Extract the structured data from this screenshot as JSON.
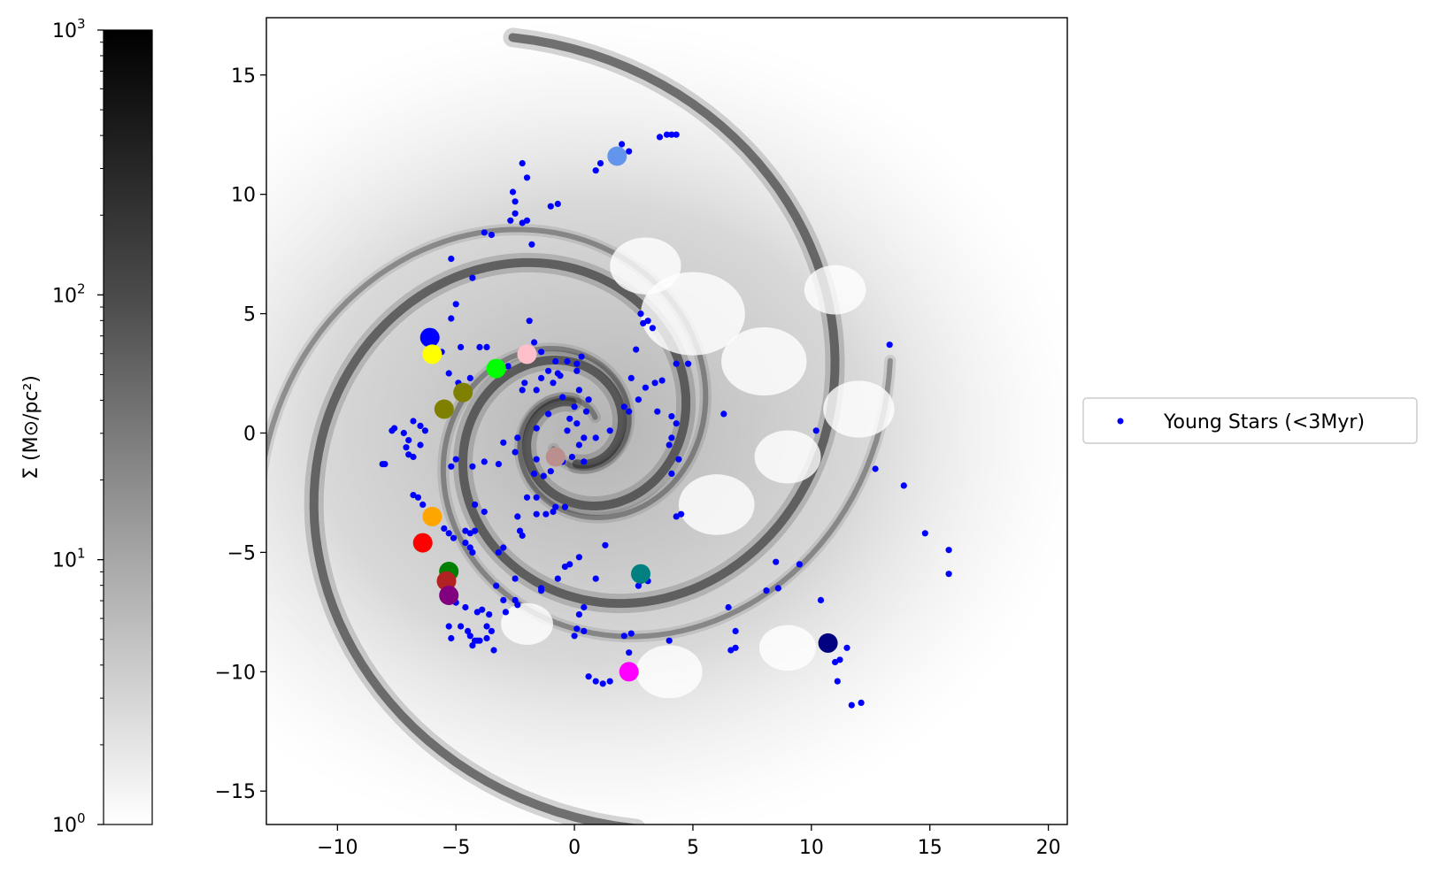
{
  "chart_data": {
    "type": "scatter",
    "background": "gas surface density map (grayscale, log scale) of a spiral galaxy",
    "xlim": [
      -13,
      20.8
    ],
    "ylim": [
      -16.4,
      17.4
    ],
    "x_ticks": [
      -10,
      -5,
      0,
      5,
      10,
      15,
      20
    ],
    "y_ticks": [
      -15,
      -10,
      -5,
      0,
      5,
      10,
      15
    ],
    "x_tick_labels": [
      "−10",
      "−5",
      "0",
      "5",
      "10",
      "15",
      "20"
    ],
    "y_tick_labels": [
      "−15",
      "−10",
      "−5",
      "0",
      "5",
      "10",
      "15"
    ],
    "grid": false,
    "legend": {
      "position": "outside-right",
      "label": "Young Stars (<3Myr)",
      "marker_color": "#0000ff"
    },
    "colorbar": {
      "label": "Σ (M⊙/pc²)",
      "scale": "log",
      "range": [
        1,
        1000
      ],
      "tick_labels": [
        {
          "base": "10",
          "exp": "0"
        },
        {
          "base": "10",
          "exp": "1"
        },
        {
          "base": "10",
          "exp": "2"
        },
        {
          "base": "10",
          "exp": "3"
        }
      ],
      "colormap": "Greys"
    },
    "series": [
      {
        "name": "Young Stars (<3Myr)",
        "color": "#0000ff",
        "marker": "small dot",
        "points": [
          [
            1.7,
            11.6
          ],
          [
            1.9,
            11.8
          ],
          [
            2.0,
            12.1
          ],
          [
            2.3,
            11.8
          ],
          [
            1.1,
            11.3
          ],
          [
            0.9,
            11.0
          ],
          [
            3.6,
            12.4
          ],
          [
            3.9,
            12.5
          ],
          [
            4.1,
            12.5
          ],
          [
            4.3,
            12.5
          ],
          [
            -2.2,
            11.3
          ],
          [
            -2.0,
            10.7
          ],
          [
            -2.6,
            10.1
          ],
          [
            -2.5,
            9.7
          ],
          [
            -1.0,
            9.5
          ],
          [
            -0.7,
            9.6
          ],
          [
            -2.5,
            9.2
          ],
          [
            -2.2,
            8.8
          ],
          [
            -2.0,
            8.9
          ],
          [
            -2.7,
            8.9
          ],
          [
            -3.8,
            8.4
          ],
          [
            -3.5,
            8.3
          ],
          [
            -1.8,
            7.9
          ],
          [
            -5.2,
            7.3
          ],
          [
            -4.3,
            6.5
          ],
          [
            -5.0,
            5.4
          ],
          [
            -5.2,
            4.8
          ],
          [
            -6.0,
            3.9
          ],
          [
            -5.6,
            3.4
          ],
          [
            -4.8,
            3.6
          ],
          [
            -4.0,
            3.6
          ],
          [
            -3.7,
            3.6
          ],
          [
            -5.3,
            2.5
          ],
          [
            -4.4,
            2.3
          ],
          [
            -4.9,
            2.1
          ],
          [
            -2.8,
            2.8
          ],
          [
            -1.9,
            4.7
          ],
          [
            -1.7,
            3.8
          ],
          [
            -1.4,
            3.4
          ],
          [
            -0.8,
            3.0
          ],
          [
            -1.1,
            2.6
          ],
          [
            -1.4,
            2.3
          ],
          [
            -0.7,
            2.5
          ],
          [
            -0.3,
            3.0
          ],
          [
            0.1,
            2.6
          ],
          [
            0.3,
            3.2
          ],
          [
            0.1,
            2.9
          ],
          [
            -0.6,
            2.4
          ],
          [
            -0.9,
            2.1
          ],
          [
            -1.6,
            1.8
          ],
          [
            -2.1,
            2.1
          ],
          [
            -2.2,
            1.8
          ],
          [
            -0.5,
            1.5
          ],
          [
            0.0,
            1.1
          ],
          [
            0.5,
            0.9
          ],
          [
            0.2,
            1.8
          ],
          [
            0.1,
            0.4
          ],
          [
            -0.3,
            0.1
          ],
          [
            -1.1,
            0.8
          ],
          [
            -1.6,
            0.2
          ],
          [
            -2.4,
            -0.2
          ],
          [
            -3.0,
            -0.4
          ],
          [
            -2.5,
            -0.8
          ],
          [
            -3.2,
            -1.3
          ],
          [
            -3.8,
            -1.2
          ],
          [
            -4.3,
            -1.4
          ],
          [
            -5.2,
            -1.4
          ],
          [
            -5.0,
            -1.1
          ],
          [
            -6.5,
            -0.5
          ],
          [
            -7.0,
            -0.3
          ],
          [
            -7.2,
            0.0
          ],
          [
            -7.7,
            0.1
          ],
          [
            -7.6,
            0.2
          ],
          [
            -6.8,
            0.5
          ],
          [
            -6.5,
            0.3
          ],
          [
            -6.3,
            0.1
          ],
          [
            -7.1,
            -0.6
          ],
          [
            -7.0,
            -0.9
          ],
          [
            -6.8,
            -1.0
          ],
          [
            -8.0,
            -1.3
          ],
          [
            -8.1,
            -1.3
          ],
          [
            -6.8,
            -2.6
          ],
          [
            -6.6,
            -2.7
          ],
          [
            -6.4,
            -3.0
          ],
          [
            -5.9,
            -3.3
          ],
          [
            -5.5,
            -4.0
          ],
          [
            -5.3,
            -4.2
          ],
          [
            -5.1,
            -4.4
          ],
          [
            -4.6,
            -4.1
          ],
          [
            -4.4,
            -4.2
          ],
          [
            -4.2,
            -4.1
          ],
          [
            -4.6,
            -4.6
          ],
          [
            -4.4,
            -4.8
          ],
          [
            -4.3,
            -5.0
          ],
          [
            -3.2,
            -5.0
          ],
          [
            -3.0,
            -4.8
          ],
          [
            -2.4,
            -3.5
          ],
          [
            -2.0,
            -2.7
          ],
          [
            -1.6,
            -2.7
          ],
          [
            -0.8,
            -3.1
          ],
          [
            -0.4,
            -3.1
          ],
          [
            -0.9,
            -3.3
          ],
          [
            -1.2,
            -3.4
          ],
          [
            -1.6,
            -3.4
          ],
          [
            -2.3,
            -4.1
          ],
          [
            -2.2,
            -4.3
          ],
          [
            -3.8,
            -3.3
          ],
          [
            -4.2,
            -3.0
          ],
          [
            -1.7,
            -1.7
          ],
          [
            -1.3,
            -1.8
          ],
          [
            -1.0,
            -1.6
          ],
          [
            -0.5,
            -1.2
          ],
          [
            -0.1,
            -1.0
          ],
          [
            0.4,
            -1.2
          ],
          [
            0.2,
            -0.5
          ],
          [
            0.4,
            -0.2
          ],
          [
            0.9,
            -0.2
          ],
          [
            1.5,
            0.1
          ],
          [
            2.1,
            1.1
          ],
          [
            2.3,
            0.9
          ],
          [
            2.7,
            1.4
          ],
          [
            2.4,
            2.3
          ],
          [
            3.0,
            1.9
          ],
          [
            3.4,
            2.1
          ],
          [
            3.7,
            2.2
          ],
          [
            3.3,
            4.4
          ],
          [
            3.1,
            4.7
          ],
          [
            2.9,
            4.6
          ],
          [
            2.8,
            5.0
          ],
          [
            2.6,
            3.5
          ],
          [
            3.5,
            0.9
          ],
          [
            4.1,
            0.7
          ],
          [
            4.3,
            0.4
          ],
          [
            4.1,
            -0.2
          ],
          [
            4.0,
            -0.5
          ],
          [
            4.4,
            -1.1
          ],
          [
            4.1,
            -1.7
          ],
          [
            6.3,
            0.8
          ],
          [
            4.8,
            2.9
          ],
          [
            4.3,
            2.9
          ],
          [
            4.5,
            -3.4
          ],
          [
            4.3,
            -3.5
          ],
          [
            1.3,
            -4.7
          ],
          [
            0.2,
            -5.2
          ],
          [
            -0.2,
            -5.5
          ],
          [
            -0.4,
            -5.6
          ],
          [
            -0.7,
            -6.1
          ],
          [
            -1.4,
            -6.5
          ],
          [
            -1.4,
            -6.6
          ],
          [
            -2.5,
            -6.1
          ],
          [
            -3.3,
            -6.4
          ],
          [
            -3.0,
            -7.0
          ],
          [
            -2.5,
            -7.0
          ],
          [
            -2.4,
            -7.2
          ],
          [
            -2.9,
            -7.5
          ],
          [
            -3.6,
            -7.6
          ],
          [
            -3.9,
            -7.4
          ],
          [
            -4.1,
            -7.5
          ],
          [
            -3.7,
            -8.1
          ],
          [
            -3.5,
            -8.3
          ],
          [
            -3.7,
            -8.6
          ],
          [
            -4.0,
            -8.7
          ],
          [
            -4.2,
            -8.7
          ],
          [
            -4.4,
            -8.5
          ],
          [
            -4.5,
            -8.3
          ],
          [
            -4.8,
            -8.1
          ],
          [
            -5.3,
            -8.1
          ],
          [
            -5.2,
            -8.6
          ],
          [
            -4.3,
            -8.9
          ],
          [
            -4.1,
            -8.7
          ],
          [
            -3.4,
            -9.1
          ],
          [
            -4.6,
            -7.3
          ],
          [
            -5.3,
            -6.0
          ],
          [
            -5.2,
            -6.6
          ],
          [
            -5.5,
            -6.9
          ],
          [
            -5.0,
            -7.1
          ],
          [
            0.9,
            -6.1
          ],
          [
            0.4,
            -7.3
          ],
          [
            0.2,
            -7.6
          ],
          [
            0.1,
            -8.2
          ],
          [
            0.0,
            -8.5
          ],
          [
            0.4,
            -8.3
          ],
          [
            0.6,
            -10.2
          ],
          [
            0.9,
            -10.4
          ],
          [
            1.2,
            -10.5
          ],
          [
            1.5,
            -10.4
          ],
          [
            2.3,
            -9.2
          ],
          [
            2.4,
            -8.4
          ],
          [
            2.1,
            -8.5
          ],
          [
            3.1,
            -6.2
          ],
          [
            3.0,
            -5.8
          ],
          [
            2.8,
            -6.2
          ],
          [
            2.7,
            -6.4
          ],
          [
            4.0,
            -8.7
          ],
          [
            6.5,
            -7.3
          ],
          [
            6.8,
            -8.3
          ],
          [
            6.8,
            -9.0
          ],
          [
            6.6,
            -9.1
          ],
          [
            8.1,
            -6.6
          ],
          [
            8.6,
            -6.5
          ],
          [
            8.5,
            -5.4
          ],
          [
            9.5,
            -5.5
          ],
          [
            10.4,
            -7.0
          ],
          [
            10.7,
            -8.8
          ],
          [
            11.0,
            -9.6
          ],
          [
            11.2,
            -9.5
          ],
          [
            11.5,
            -9.0
          ],
          [
            11.1,
            -10.4
          ],
          [
            11.7,
            -11.4
          ],
          [
            12.1,
            -11.3
          ],
          [
            10.2,
            0.1
          ],
          [
            12.7,
            -1.5
          ],
          [
            13.3,
            3.7
          ],
          [
            13.9,
            -2.2
          ],
          [
            14.8,
            -4.2
          ],
          [
            15.8,
            -4.9
          ],
          [
            15.8,
            -5.9
          ],
          [
            -1.6,
            -1.1
          ],
          [
            -0.2,
            0.6
          ],
          [
            0.6,
            1.4
          ]
        ]
      },
      {
        "name": "",
        "marker": "large dot",
        "points": [
          {
            "x": 1.8,
            "y": 11.6,
            "color": "#6495ed"
          },
          {
            "x": -6.1,
            "y": 4.0,
            "color": "#0000ff"
          },
          {
            "x": -6.0,
            "y": 3.3,
            "color": "#ffff00"
          },
          {
            "x": -3.3,
            "y": 2.7,
            "color": "#00ff00"
          },
          {
            "x": -2.0,
            "y": 3.3,
            "color": "#ffc0cb"
          },
          {
            "x": -4.7,
            "y": 1.7,
            "color": "#808000"
          },
          {
            "x": -5.5,
            "y": 1.0,
            "color": "#808000"
          },
          {
            "x": -0.8,
            "y": -1.0,
            "color": "#bc8f8f"
          },
          {
            "x": -6.0,
            "y": -3.5,
            "color": "#ffa500"
          },
          {
            "x": -6.4,
            "y": -4.6,
            "color": "#ff0000"
          },
          {
            "x": -5.3,
            "y": -5.8,
            "color": "#008000"
          },
          {
            "x": -5.4,
            "y": -6.2,
            "color": "#b22222"
          },
          {
            "x": -5.3,
            "y": -6.8,
            "color": "#800080"
          },
          {
            "x": 2.8,
            "y": -5.9,
            "color": "#008080"
          },
          {
            "x": 10.7,
            "y": -8.8,
            "color": "#000080"
          },
          {
            "x": 2.3,
            "y": -10.0,
            "color": "#ff00ff"
          }
        ]
      }
    ]
  }
}
